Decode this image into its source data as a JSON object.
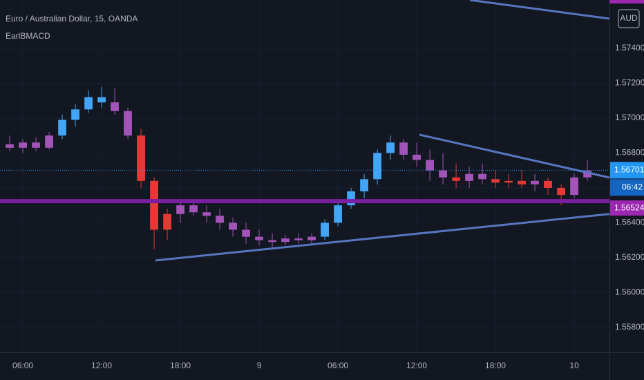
{
  "chart_data": {
    "type": "candlestick",
    "title": "Euro / Australian Dollar, 15, OANDA",
    "indicator": "EarlBMACD",
    "currency": "AUD",
    "countdown": "06:42",
    "x": [
      5,
      6,
      7,
      8,
      9,
      10,
      11,
      12,
      13,
      14,
      15,
      16,
      17,
      18,
      19,
      20,
      21,
      22,
      23,
      24,
      25,
      26,
      27,
      28,
      29,
      30,
      31,
      32,
      33,
      34,
      35,
      36,
      37,
      38,
      39,
      40,
      41,
      42,
      43,
      44,
      45,
      46,
      47,
      48,
      49
    ],
    "open": [
      1.5685,
      1.5683,
      1.5686,
      1.5683,
      1.569,
      1.5699,
      1.5705,
      1.5712,
      1.5709,
      1.5704,
      1.569,
      1.5664,
      1.5636,
      1.5645,
      1.565,
      1.5646,
      1.5644,
      1.564,
      1.5636,
      1.5632,
      1.563,
      1.5629,
      1.5631,
      1.563,
      1.5632,
      1.564,
      1.565,
      1.5658,
      1.5665,
      1.568,
      1.5686,
      1.5679,
      1.5676,
      1.567,
      1.5666,
      1.5664,
      1.5668,
      1.5665,
      1.5663,
      1.5664,
      1.5662,
      1.5664,
      1.566,
      1.5656,
      1.5666
    ],
    "high": [
      1.569,
      1.5688,
      1.5689,
      1.5692,
      1.5702,
      1.5708,
      1.5716,
      1.5718,
      1.5717,
      1.5706,
      1.5694,
      1.5666,
      1.5648,
      1.5652,
      1.5653,
      1.565,
      1.5648,
      1.5643,
      1.564,
      1.5636,
      1.5634,
      1.5633,
      1.5634,
      1.5634,
      1.5642,
      1.5652,
      1.566,
      1.5668,
      1.5682,
      1.569,
      1.5688,
      1.5686,
      1.5682,
      1.568,
      1.5674,
      1.5672,
      1.5674,
      1.567,
      1.5668,
      1.567,
      1.5668,
      1.5666,
      1.5662,
      1.5668,
      1.5676
    ],
    "low": [
      1.5681,
      1.568,
      1.5681,
      1.5682,
      1.5688,
      1.5695,
      1.5703,
      1.5706,
      1.5702,
      1.5688,
      1.566,
      1.5625,
      1.563,
      1.564,
      1.5644,
      1.564,
      1.5636,
      1.5632,
      1.5628,
      1.5627,
      1.5626,
      1.5627,
      1.5628,
      1.5628,
      1.563,
      1.5638,
      1.5648,
      1.5654,
      1.5662,
      1.5676,
      1.5676,
      1.5672,
      1.5664,
      1.5662,
      1.566,
      1.566,
      1.5662,
      1.566,
      1.566,
      1.566,
      1.5658,
      1.5656,
      1.565,
      1.5654,
      1.5664
    ],
    "close": [
      1.5683,
      1.5686,
      1.5683,
      1.569,
      1.5699,
      1.5705,
      1.5712,
      1.5709,
      1.5704,
      1.569,
      1.5664,
      1.5636,
      1.5645,
      1.565,
      1.5646,
      1.5644,
      1.564,
      1.5636,
      1.5632,
      1.563,
      1.5629,
      1.5631,
      1.563,
      1.5632,
      1.564,
      1.565,
      1.5658,
      1.5665,
      1.568,
      1.5686,
      1.5679,
      1.5676,
      1.567,
      1.5666,
      1.5664,
      1.5668,
      1.5665,
      1.5663,
      1.5664,
      1.5662,
      1.5664,
      1.566,
      1.5656,
      1.5666,
      1.567
    ],
    "colors": [
      "#a354b8",
      "#a354b8",
      "#a354b8",
      "#a354b8",
      "#42a5f5",
      "#42a5f5",
      "#42a5f5",
      "#42a5f5",
      "#a354b8",
      "#a354b8",
      "#e53935",
      "#e53935",
      "#e53935",
      "#a354b8",
      "#a354b8",
      "#a354b8",
      "#a354b8",
      "#a354b8",
      "#a354b8",
      "#a354b8",
      "#a354b8",
      "#a354b8",
      "#a354b8",
      "#a354b8",
      "#42a5f5",
      "#42a5f5",
      "#42a5f5",
      "#42a5f5",
      "#42a5f5",
      "#42a5f5",
      "#a354b8",
      "#a354b8",
      "#a354b8",
      "#a354b8",
      "#e53935",
      "#a354b8",
      "#a354b8",
      "#e53935",
      "#e53935",
      "#e53935",
      "#a354b8",
      "#e53935",
      "#e53935",
      "#a354b8",
      "#a354b8"
    ],
    "xlim": [
      4.26,
      50.68
    ],
    "ylim": [
      1.55657,
      1.57677
    ],
    "xticks": [
      {
        "value": 6,
        "label": "06:00"
      },
      {
        "value": 12,
        "label": "12:00"
      },
      {
        "value": 18,
        "label": "18:00"
      },
      {
        "value": 24,
        "label": "9"
      },
      {
        "value": 30,
        "label": "06:00"
      },
      {
        "value": 36,
        "label": "12:00"
      },
      {
        "value": 42,
        "label": "18:00"
      },
      {
        "value": 48,
        "label": "10"
      }
    ],
    "yticks": [
      {
        "value": 1.558,
        "label": "1.55800"
      },
      {
        "value": 1.56,
        "label": "1.56000"
      },
      {
        "value": 1.562,
        "label": "1.56200"
      },
      {
        "value": 1.564,
        "label": "1.56400"
      },
      {
        "value": 1.566,
        "label": "1.56600"
      },
      {
        "value": 1.568,
        "label": "1.56800"
      },
      {
        "value": 1.57,
        "label": "1.57000"
      },
      {
        "value": 1.572,
        "label": "1.57200"
      },
      {
        "value": 1.574,
        "label": "1.57400"
      }
    ],
    "grid": true,
    "trendlines": [
      {
        "x": [
          16.1,
          50.68
        ],
        "y": [
          1.56184,
          1.5645
        ],
        "color": "#5677c0"
      },
      {
        "x": [
          36.2,
          50.68
        ],
        "y": [
          1.56905,
          1.56659
        ],
        "color": "#5677c0"
      },
      {
        "x": [
          40.05,
          50.68
        ],
        "y": [
          1.57677,
          1.5757
        ],
        "color": "#5677c0"
      }
    ],
    "current_price": 1.56701,
    "current_color": "#2196f3",
    "level": 1.56524,
    "level_color": "#7b1fa2"
  }
}
